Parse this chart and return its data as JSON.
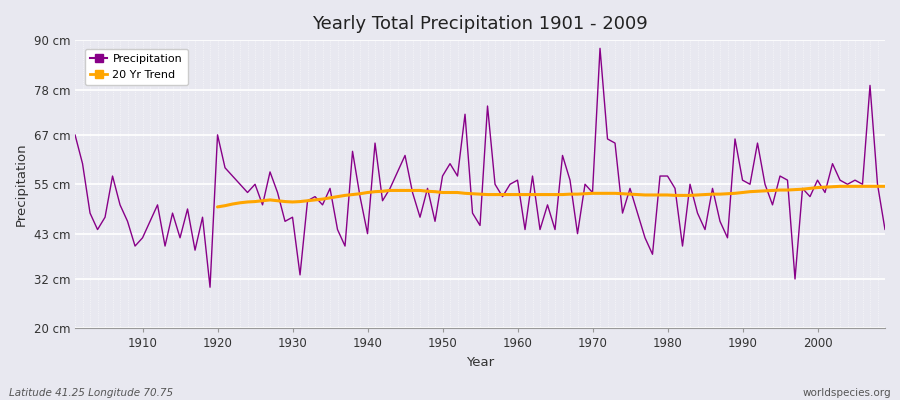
{
  "title": "Yearly Total Precipitation 1901 - 2009",
  "xlabel": "Year",
  "ylabel": "Precipitation",
  "subtitle_left": "Latitude 41.25 Longitude 70.75",
  "subtitle_right": "worldspecies.org",
  "ytick_labels": [
    "20 cm",
    "32 cm",
    "43 cm",
    "55 cm",
    "67 cm",
    "78 cm",
    "90 cm"
  ],
  "ytick_values": [
    20,
    32,
    43,
    55,
    67,
    78,
    90
  ],
  "ylim": [
    20,
    90
  ],
  "xlim": [
    1901,
    2009
  ],
  "precip_color": "#880088",
  "trend_color": "#FFA500",
  "bg_color": "#E8E8F0",
  "grid_color": "#FFFFFF",
  "legend_label_precip": "Precipitation",
  "legend_label_trend": "20 Yr Trend",
  "years": [
    1901,
    1902,
    1903,
    1904,
    1905,
    1906,
    1907,
    1908,
    1909,
    1910,
    1911,
    1912,
    1913,
    1914,
    1915,
    1916,
    1917,
    1918,
    1919,
    1920,
    1921,
    1922,
    1923,
    1924,
    1925,
    1926,
    1927,
    1928,
    1929,
    1930,
    1931,
    1932,
    1933,
    1934,
    1935,
    1936,
    1937,
    1938,
    1939,
    1940,
    1941,
    1942,
    1943,
    1944,
    1945,
    1946,
    1947,
    1948,
    1949,
    1950,
    1951,
    1952,
    1953,
    1954,
    1955,
    1956,
    1957,
    1958,
    1959,
    1960,
    1961,
    1962,
    1963,
    1964,
    1965,
    1966,
    1967,
    1968,
    1969,
    1970,
    1971,
    1972,
    1973,
    1974,
    1975,
    1976,
    1977,
    1978,
    1979,
    1980,
    1981,
    1982,
    1983,
    1984,
    1985,
    1986,
    1987,
    1988,
    1989,
    1990,
    1991,
    1992,
    1993,
    1994,
    1995,
    1996,
    1997,
    1998,
    1999,
    2000,
    2001,
    2002,
    2003,
    2004,
    2005,
    2006,
    2007,
    2008,
    2009
  ],
  "precip": [
    67,
    60,
    48,
    44,
    47,
    57,
    50,
    46,
    40,
    42,
    46,
    50,
    40,
    48,
    42,
    49,
    39,
    47,
    30,
    67,
    59,
    57,
    55,
    53,
    55,
    50,
    58,
    53,
    46,
    47,
    33,
    51,
    52,
    50,
    54,
    44,
    40,
    63,
    52,
    43,
    65,
    51,
    54,
    58,
    62,
    53,
    47,
    54,
    46,
    57,
    60,
    57,
    72,
    48,
    45,
    74,
    55,
    52,
    55,
    56,
    44,
    57,
    44,
    50,
    44,
    62,
    56,
    43,
    55,
    53,
    88,
    66,
    65,
    48,
    54,
    48,
    42,
    38,
    57,
    57,
    54,
    40,
    55,
    48,
    44,
    54,
    46,
    42,
    66,
    56,
    55,
    65,
    55,
    50,
    57,
    56,
    32,
    54,
    52,
    56,
    53,
    60,
    56,
    55,
    56,
    55,
    79,
    55,
    44
  ],
  "trend_years": [
    1920,
    1921,
    1922,
    1923,
    1924,
    1925,
    1926,
    1927,
    1928,
    1929,
    1930,
    1931,
    1932,
    1933,
    1934,
    1935,
    1936,
    1937,
    1938,
    1939,
    1940,
    1941,
    1942,
    1943,
    1944,
    1945,
    1946,
    1947,
    1948,
    1949,
    1950,
    1951,
    1952,
    1953,
    1954,
    1955,
    1956,
    1957,
    1958,
    1959,
    1960,
    1961,
    1962,
    1963,
    1964,
    1965,
    1966,
    1967,
    1968,
    1969,
    1970,
    1971,
    1972,
    1973,
    1974,
    1975,
    1976,
    1977,
    1978,
    1979,
    1980,
    1981,
    1982,
    1983,
    1984,
    1985,
    1986,
    1987,
    1988,
    1989,
    1990,
    1991,
    1992,
    1993,
    1994,
    1995,
    1996,
    1997,
    1998,
    1999,
    2000,
    2001,
    2002,
    2003,
    2004,
    2005,
    2006,
    2007,
    2008,
    2009
  ],
  "trend": [
    49.5,
    49.8,
    50.2,
    50.5,
    50.7,
    50.8,
    51.0,
    51.2,
    51.0,
    50.8,
    50.7,
    50.8,
    51.0,
    51.2,
    51.4,
    51.7,
    52.0,
    52.3,
    52.5,
    52.7,
    53.0,
    53.2,
    53.3,
    53.5,
    53.5,
    53.5,
    53.5,
    53.5,
    53.3,
    53.2,
    53.0,
    53.0,
    53.0,
    52.8,
    52.7,
    52.6,
    52.5,
    52.5,
    52.5,
    52.5,
    52.5,
    52.5,
    52.5,
    52.5,
    52.5,
    52.5,
    52.5,
    52.6,
    52.6,
    52.7,
    52.8,
    52.8,
    52.8,
    52.8,
    52.7,
    52.6,
    52.5,
    52.4,
    52.4,
    52.4,
    52.4,
    52.3,
    52.3,
    52.3,
    52.4,
    52.5,
    52.6,
    52.6,
    52.7,
    52.8,
    53.0,
    53.2,
    53.3,
    53.4,
    53.5,
    53.6,
    53.6,
    53.7,
    53.8,
    54.0,
    54.2,
    54.3,
    54.4,
    54.5,
    54.5,
    54.5,
    54.5,
    54.5,
    54.5,
    54.5
  ]
}
